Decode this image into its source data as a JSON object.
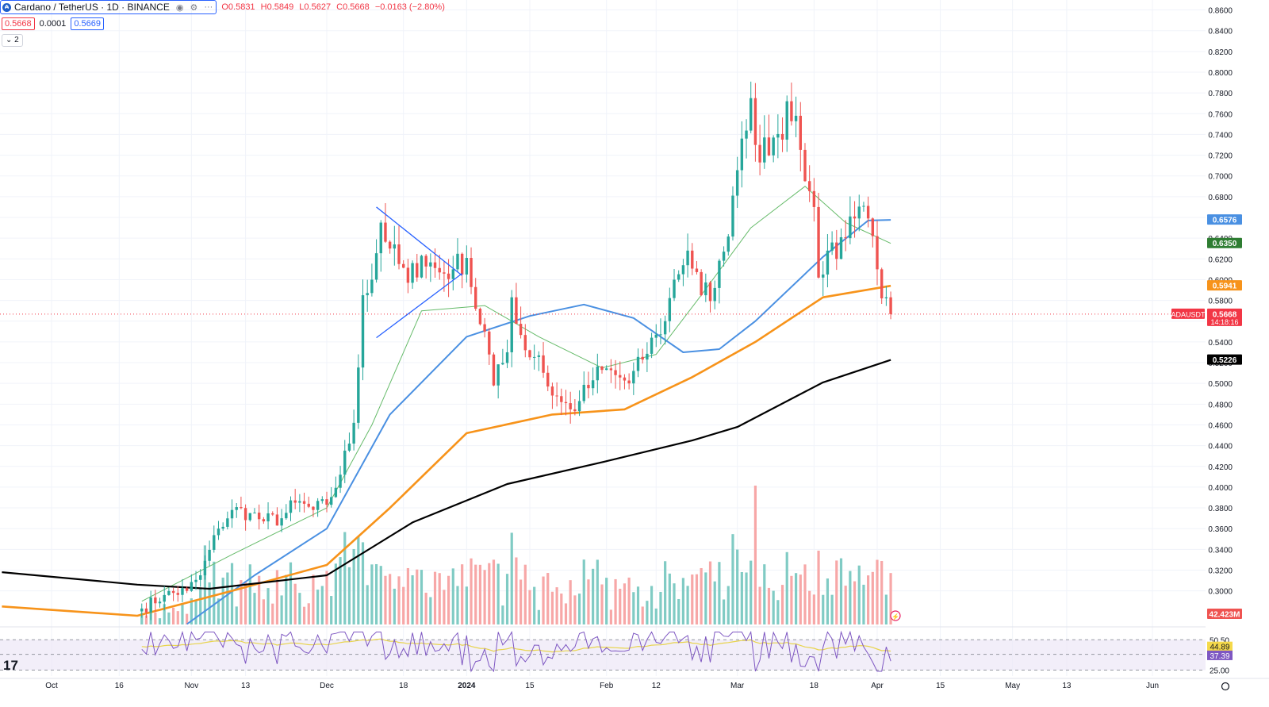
{
  "header": {
    "symbol_title": "Cardano / TetherUS · 1D · BINANCE",
    "ohlc": {
      "o_label": "O",
      "o": "0.5831",
      "h_label": "H",
      "h": "0.5849",
      "l_label": "L",
      "l": "0.5627",
      "c_label": "C",
      "c": "0.5668",
      "change": "−0.0163 (−2.80%)"
    },
    "bid": "0.5668",
    "spread": "0.0001",
    "ask": "0.5669",
    "indicators_toggle": "2"
  },
  "colors": {
    "up": "#26a69a",
    "down": "#ef5350",
    "vol_up": "#80cbc4",
    "vol_down": "#f7a7a7",
    "ema20": "#66bb6a",
    "ema50": "#4a90e2",
    "ema100": "#f7931a",
    "ema200": "#000000",
    "trend": "#2962ff",
    "rsi": "#7e57c2",
    "rsi_ma": "#e8d44d"
  },
  "chart_data": {
    "type": "candlestick",
    "symbol": "ADAUSDT",
    "interval": "1D",
    "price_ticks": [
      "0.8600",
      "0.8400",
      "0.8200",
      "0.8000",
      "0.7800",
      "0.7600",
      "0.7400",
      "0.7200",
      "0.7000",
      "0.6800",
      "0.6600",
      "0.6400",
      "0.6200",
      "0.6000",
      "0.5800",
      "0.5600",
      "0.5400",
      "0.5200",
      "0.5000",
      "0.4800",
      "0.4600",
      "0.4400",
      "0.4200",
      "0.4000",
      "0.3800",
      "0.3600",
      "0.3400",
      "0.3200",
      "0.3000"
    ],
    "ylim": [
      0.2676,
      0.8696
    ],
    "x_labels": [
      {
        "t": "Oct",
        "d": "2023-10-01"
      },
      {
        "t": "16",
        "d": "2023-10-16"
      },
      {
        "t": "Nov",
        "d": "2023-11-01"
      },
      {
        "t": "13",
        "d": "2023-11-13"
      },
      {
        "t": "Dec",
        "d": "2023-12-01"
      },
      {
        "t": "18",
        "d": "2023-12-18"
      },
      {
        "t": "2024",
        "d": "2024-01-01"
      },
      {
        "t": "15",
        "d": "2024-01-15"
      },
      {
        "t": "Feb",
        "d": "2024-02-01"
      },
      {
        "t": "12",
        "d": "2024-02-12"
      },
      {
        "t": "Mar",
        "d": "2024-03-01"
      },
      {
        "t": "18",
        "d": "2024-03-18"
      },
      {
        "t": "Apr",
        "d": "2024-04-01"
      },
      {
        "t": "15",
        "d": "2024-04-15"
      },
      {
        "t": "May",
        "d": "2024-05-01"
      },
      {
        "t": "13",
        "d": "2024-05-13"
      },
      {
        "t": "Jun",
        "d": "2024-06-01"
      }
    ],
    "candles_start_date": "2023-10-21",
    "candles_end_date": "2024-04-04",
    "price_anchors": [
      [
        "2023-10-21",
        0.283
      ],
      [
        "2023-10-26",
        0.296
      ],
      [
        "2023-10-31",
        0.3
      ],
      [
        "2023-11-03",
        0.315
      ],
      [
        "2023-11-07",
        0.36
      ],
      [
        "2023-11-10",
        0.378
      ],
      [
        "2023-11-14",
        0.375
      ],
      [
        "2023-11-17",
        0.367
      ],
      [
        "2023-11-21",
        0.37
      ],
      [
        "2023-11-24",
        0.385
      ],
      [
        "2023-11-28",
        0.378
      ],
      [
        "2023-12-01",
        0.383
      ],
      [
        "2023-12-04",
        0.412
      ],
      [
        "2023-12-07",
        0.462
      ],
      [
        "2023-12-09",
        0.585
      ],
      [
        "2023-12-11",
        0.6
      ],
      [
        "2023-12-13",
        0.655
      ],
      [
        "2023-12-15",
        0.63
      ],
      [
        "2023-12-19",
        0.597
      ],
      [
        "2023-12-22",
        0.623
      ],
      [
        "2023-12-26",
        0.607
      ],
      [
        "2023-12-29",
        0.61
      ],
      [
        "2024-01-01",
        0.621
      ],
      [
        "2024-01-03",
        0.572
      ],
      [
        "2024-01-05",
        0.55
      ],
      [
        "2024-01-07",
        0.498
      ],
      [
        "2024-01-10",
        0.53
      ],
      [
        "2024-01-11",
        0.583
      ],
      [
        "2024-01-14",
        0.532
      ],
      [
        "2024-01-17",
        0.527
      ],
      [
        "2024-01-19",
        0.497
      ],
      [
        "2024-01-22",
        0.482
      ],
      [
        "2024-01-24",
        0.475
      ],
      [
        "2024-01-26",
        0.483
      ],
      [
        "2024-01-29",
        0.503
      ],
      [
        "2024-01-31",
        0.513
      ],
      [
        "2024-02-03",
        0.508
      ],
      [
        "2024-02-06",
        0.5
      ],
      [
        "2024-02-09",
        0.523
      ],
      [
        "2024-02-12",
        0.547
      ],
      [
        "2024-02-14",
        0.56
      ],
      [
        "2024-02-16",
        0.6
      ],
      [
        "2024-02-19",
        0.628
      ],
      [
        "2024-02-22",
        0.585
      ],
      [
        "2024-02-25",
        0.592
      ],
      [
        "2024-02-27",
        0.627
      ],
      [
        "2024-02-29",
        0.681
      ],
      [
        "2024-03-02",
        0.736
      ],
      [
        "2024-03-04",
        0.775
      ],
      [
        "2024-03-06",
        0.713
      ],
      [
        "2024-03-09",
        0.737
      ],
      [
        "2024-03-11",
        0.735
      ],
      [
        "2024-03-12",
        0.772
      ],
      [
        "2024-03-14",
        0.758
      ],
      [
        "2024-03-16",
        0.695
      ],
      [
        "2024-03-18",
        0.67
      ],
      [
        "2024-03-19",
        0.602
      ],
      [
        "2024-03-21",
        0.628
      ],
      [
        "2024-03-23",
        0.62
      ],
      [
        "2024-03-25",
        0.64
      ],
      [
        "2024-03-27",
        0.659
      ],
      [
        "2024-03-30",
        0.659
      ],
      [
        "2024-04-01",
        0.61
      ],
      [
        "2024-04-02",
        0.582
      ],
      [
        "2024-04-03",
        0.583
      ],
      [
        "2024-04-04",
        0.5668
      ]
    ],
    "moving_averages": [
      {
        "kind": "ema20",
        "points": [
          [
            "2023-10-21",
            0.29
          ],
          [
            "2023-11-10",
            0.335
          ],
          [
            "2023-12-01",
            0.38
          ],
          [
            "2023-12-11",
            0.46
          ],
          [
            "2023-12-22",
            0.57
          ],
          [
            "2024-01-05",
            0.575
          ],
          [
            "2024-01-17",
            0.545
          ],
          [
            "2024-01-31",
            0.515
          ],
          [
            "2024-02-12",
            0.528
          ],
          [
            "2024-02-22",
            0.585
          ],
          [
            "2024-03-04",
            0.65
          ],
          [
            "2024-03-16",
            0.69
          ],
          [
            "2024-03-25",
            0.655
          ],
          [
            "2024-04-04",
            0.635
          ]
        ]
      },
      {
        "kind": "ema50",
        "points": [
          [
            "2023-10-31",
            0.268
          ],
          [
            "2023-11-15",
            0.315
          ],
          [
            "2023-12-01",
            0.36
          ],
          [
            "2023-12-15",
            0.47
          ],
          [
            "2024-01-01",
            0.545
          ],
          [
            "2024-01-15",
            0.565
          ],
          [
            "2024-01-27",
            0.576
          ],
          [
            "2024-02-07",
            0.563
          ],
          [
            "2024-02-18",
            0.53
          ],
          [
            "2024-02-26",
            0.533
          ],
          [
            "2024-03-05",
            0.56
          ],
          [
            "2024-03-20",
            0.622
          ],
          [
            "2024-03-30",
            0.657
          ],
          [
            "2024-04-04",
            0.6576
          ]
        ]
      },
      {
        "kind": "ema100",
        "points": [
          [
            "2023-09-20",
            0.285
          ],
          [
            "2023-10-20",
            0.276
          ],
          [
            "2023-11-10",
            0.3
          ],
          [
            "2023-12-01",
            0.325
          ],
          [
            "2023-12-15",
            0.38
          ],
          [
            "2024-01-01",
            0.452
          ],
          [
            "2024-01-20",
            0.47
          ],
          [
            "2024-02-05",
            0.475
          ],
          [
            "2024-02-20",
            0.506
          ],
          [
            "2024-03-05",
            0.54
          ],
          [
            "2024-03-20",
            0.583
          ],
          [
            "2024-04-04",
            0.5941
          ]
        ]
      },
      {
        "kind": "ema200",
        "points": [
          [
            "2023-09-20",
            0.318
          ],
          [
            "2023-10-20",
            0.306
          ],
          [
            "2023-11-05",
            0.302
          ],
          [
            "2023-12-01",
            0.315
          ],
          [
            "2023-12-20",
            0.366
          ],
          [
            "2024-01-10",
            0.403
          ],
          [
            "2024-02-01",
            0.425
          ],
          [
            "2024-02-20",
            0.445
          ],
          [
            "2024-03-01",
            0.458
          ],
          [
            "2024-03-20",
            0.501
          ],
          [
            "2024-04-04",
            0.5226
          ]
        ]
      }
    ],
    "triangle_lines": [
      [
        [
          "2023-12-12",
          0.67
        ],
        [
          "2023-12-31",
          0.604
        ]
      ],
      [
        [
          "2023-12-12",
          0.544
        ],
        [
          "2023-12-31",
          0.606
        ]
      ]
    ],
    "volume_max_date": "2024-03-05",
    "price_badges": [
      {
        "label": "0.6576",
        "value": 0.6576,
        "bg": "#4a90e2"
      },
      {
        "label": "0.6350",
        "value": 0.635,
        "bg": "#2e7d32"
      },
      {
        "label": "0.5941",
        "value": 0.5941,
        "bg": "#f7931a"
      },
      {
        "label": "0.5668",
        "value": 0.5668,
        "bg": "#f23645",
        "sub": "14:18:16"
      },
      {
        "label": "0.5226",
        "value": 0.5226,
        "bg": "#000000"
      }
    ],
    "last_price_tag": "ADAUSDT",
    "volume_badge": "42.423M",
    "rsi_ticks": [
      "50.50",
      "38.26",
      "25.00"
    ],
    "rsi_badges": [
      {
        "label": "44.89",
        "bg": "#f5d94a"
      },
      {
        "label": "37.39",
        "bg": "#7e57c2"
      }
    ]
  }
}
